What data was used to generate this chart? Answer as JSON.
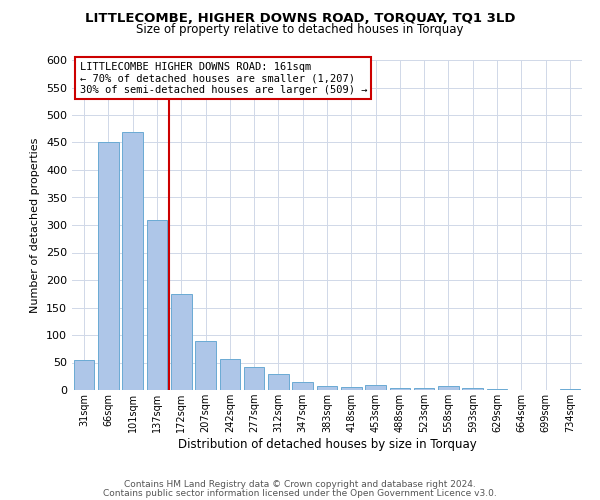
{
  "title": "LITTLECOMBE, HIGHER DOWNS ROAD, TORQUAY, TQ1 3LD",
  "subtitle": "Size of property relative to detached houses in Torquay",
  "xlabel": "Distribution of detached houses by size in Torquay",
  "ylabel": "Number of detached properties",
  "bar_labels": [
    "31sqm",
    "66sqm",
    "101sqm",
    "137sqm",
    "172sqm",
    "207sqm",
    "242sqm",
    "277sqm",
    "312sqm",
    "347sqm",
    "383sqm",
    "418sqm",
    "453sqm",
    "488sqm",
    "523sqm",
    "558sqm",
    "593sqm",
    "629sqm",
    "664sqm",
    "699sqm",
    "734sqm"
  ],
  "bar_values": [
    55,
    450,
    470,
    310,
    175,
    90,
    57,
    42,
    30,
    15,
    8,
    5,
    10,
    3,
    3,
    8,
    3,
    1,
    0,
    0,
    2
  ],
  "bar_color": "#aec6e8",
  "bar_edge_color": "#6aaad4",
  "vline_x": 3.5,
  "vline_color": "#cc0000",
  "annotation_text": "LITTLECOMBE HIGHER DOWNS ROAD: 161sqm\n← 70% of detached houses are smaller (1,207)\n30% of semi-detached houses are larger (509) →",
  "annotation_box_color": "#ffffff",
  "annotation_box_edge": "#cc0000",
  "ylim": [
    0,
    600
  ],
  "yticks": [
    0,
    50,
    100,
    150,
    200,
    250,
    300,
    350,
    400,
    450,
    500,
    550,
    600
  ],
  "footer1": "Contains HM Land Registry data © Crown copyright and database right 2024.",
  "footer2": "Contains public sector information licensed under the Open Government Licence v3.0.",
  "bg_color": "#ffffff",
  "grid_color": "#d0d8e8"
}
